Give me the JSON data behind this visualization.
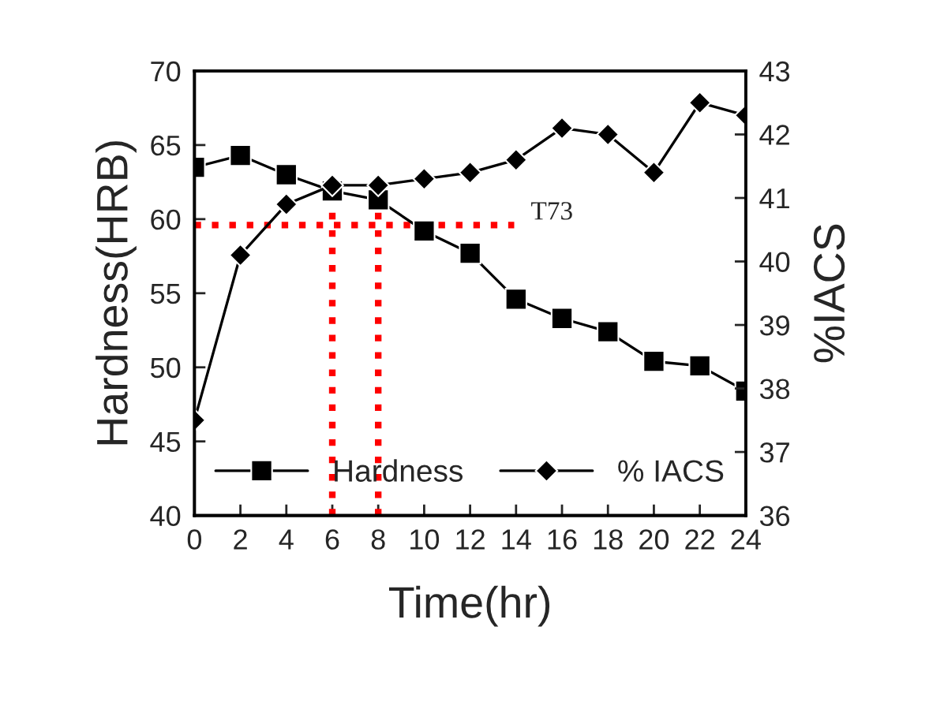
{
  "chart_data": {
    "type": "line",
    "x": [
      0,
      2,
      4,
      6,
      8,
      10,
      12,
      14,
      16,
      18,
      20,
      22,
      24
    ],
    "xlabel": "Time(hr)",
    "ylabel": "Hardness(HRB)",
    "y2label": "%IACS",
    "series": [
      {
        "name": "Hardness",
        "color": "#000000",
        "marker": "square",
        "values": [
          63.5,
          64.3,
          63.0,
          61.9,
          61.3,
          59.2,
          57.7,
          54.6,
          53.3,
          52.4,
          50.4,
          50.1,
          48.4
        ]
      },
      {
        "name": "% IACS",
        "color": "#000000",
        "marker": "diamond",
        "axis": "y2",
        "values": [
          37.5,
          40.1,
          40.9,
          41.2,
          41.2,
          41.3,
          41.4,
          41.6,
          42.1,
          42.0,
          41.4,
          42.5,
          42.3
        ]
      }
    ],
    "xlim": [
      0,
      24
    ],
    "xticks": [
      0,
      2,
      4,
      6,
      8,
      10,
      12,
      14,
      16,
      18,
      20,
      22,
      24
    ],
    "ylim": [
      40,
      70
    ],
    "yticks": [
      40,
      45,
      50,
      55,
      60,
      65,
      70
    ],
    "y2lim": [
      36,
      43
    ],
    "y2ticks": [
      36,
      37,
      38,
      39,
      40,
      41,
      42,
      43
    ],
    "ref_lines": [
      {
        "axis": "y",
        "value": 59.6,
        "label": "T73",
        "color": "#ff0000",
        "line_style": "dotted"
      },
      {
        "axis": "x",
        "value": 6,
        "color": "#ff0000",
        "line_style": "dotted"
      },
      {
        "axis": "x",
        "value": 8,
        "color": "#ff0000",
        "line_style": "dotted"
      }
    ],
    "line_style": "solid",
    "legend": "bottom",
    "grid": false
  }
}
